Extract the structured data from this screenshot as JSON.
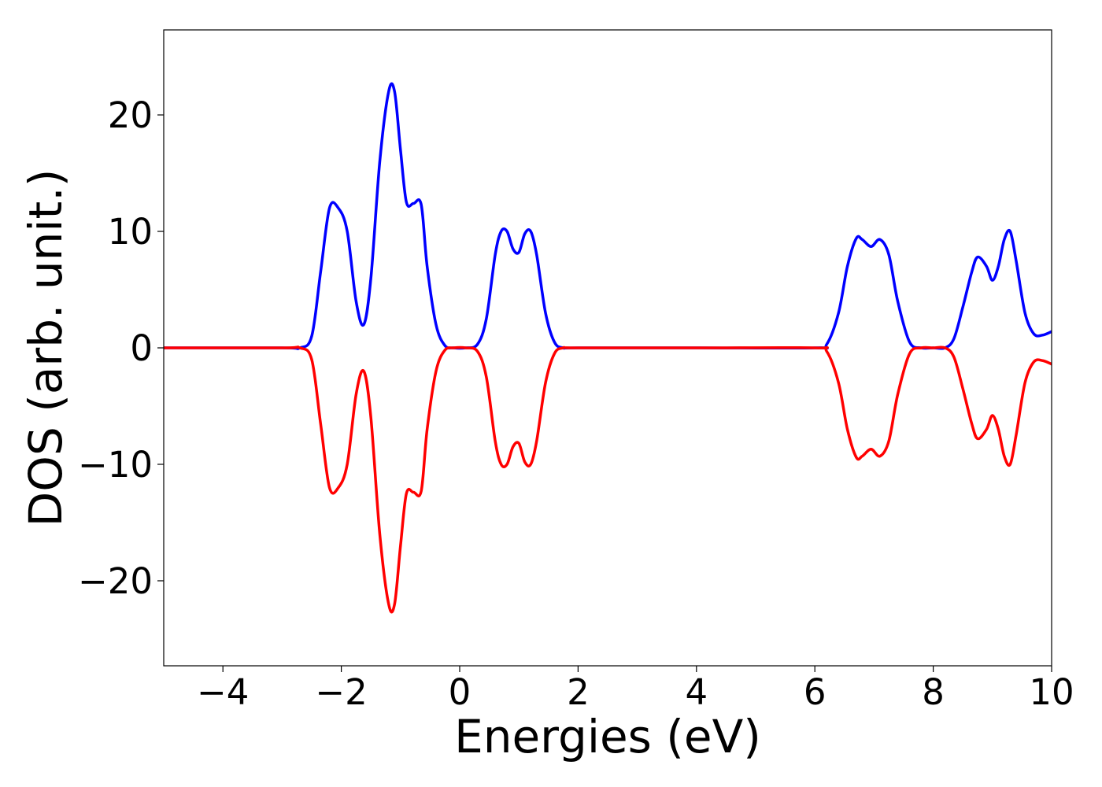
{
  "chart_data": {
    "type": "line",
    "xlabel": "Energies (eV)",
    "ylabel": "DOS (arb. unit.)",
    "xlim": [
      -5,
      10
    ],
    "ylim": [
      -27.3,
      27.3
    ],
    "xticks": [
      -4,
      -2,
      0,
      2,
      4,
      6,
      8,
      10
    ],
    "xtick_labels": [
      "−4",
      "−2",
      "0",
      "2",
      "4",
      "6",
      "8",
      "10"
    ],
    "yticks": [
      20,
      10,
      0,
      -10,
      -20
    ],
    "ytick_labels": [
      "20",
      "10",
      "0",
      "−10",
      "−20"
    ],
    "grid": false,
    "series": [
      {
        "color": "#0000ff",
        "x": [
          -5,
          -3,
          -2.7,
          -2.5,
          -2.35,
          -2.2,
          -2.05,
          -1.9,
          -1.75,
          -1.62,
          -1.5,
          -1.35,
          -1.2,
          -1.1,
          -1.0,
          -0.9,
          -0.78,
          -0.65,
          -0.55,
          -0.4,
          -0.25,
          -0.1,
          0.1,
          0.3,
          0.45,
          0.6,
          0.7,
          0.8,
          0.9,
          1.0,
          1.1,
          1.2,
          1.3,
          1.45,
          1.6,
          1.75,
          2,
          4,
          6,
          6.2,
          6.4,
          6.55,
          6.7,
          6.8,
          6.95,
          7.1,
          7.25,
          7.4,
          7.6,
          7.8,
          8.0,
          8.2,
          8.35,
          8.5,
          8.65,
          8.75,
          8.9,
          9.0,
          9.1,
          9.2,
          9.3,
          9.4,
          9.55,
          9.7,
          9.85,
          10
        ],
        "values": [
          0,
          0,
          0,
          1.0,
          6.5,
          12.0,
          12.0,
          10.0,
          4.0,
          2.0,
          6.0,
          16.0,
          22.0,
          22.0,
          17.0,
          12.5,
          12.4,
          12.3,
          7.0,
          2.0,
          0.2,
          0,
          0,
          0.3,
          2.5,
          8.0,
          10.0,
          10.0,
          8.5,
          8.2,
          9.8,
          10.0,
          8.0,
          3.0,
          0.5,
          0,
          0,
          0,
          0,
          0.3,
          3.0,
          7.0,
          9.4,
          9.3,
          8.7,
          9.3,
          8.0,
          4.0,
          0.5,
          0,
          0,
          0,
          0.8,
          3.5,
          6.5,
          7.8,
          7.0,
          5.8,
          7.0,
          9.3,
          10.0,
          7.5,
          3.0,
          1.2,
          1.1,
          1.4
        ]
      },
      {
        "color": "#ff0000",
        "x": [
          -5,
          -3,
          -2.7,
          -2.5,
          -2.35,
          -2.2,
          -2.05,
          -1.9,
          -1.75,
          -1.62,
          -1.5,
          -1.35,
          -1.2,
          -1.1,
          -1.0,
          -0.9,
          -0.78,
          -0.65,
          -0.55,
          -0.4,
          -0.25,
          -0.1,
          0.1,
          0.3,
          0.45,
          0.6,
          0.7,
          0.8,
          0.9,
          1.0,
          1.1,
          1.2,
          1.3,
          1.45,
          1.6,
          1.75,
          2,
          4,
          6,
          6.2,
          6.4,
          6.55,
          6.7,
          6.8,
          6.95,
          7.1,
          7.25,
          7.4,
          7.6,
          7.8,
          8.0,
          8.2,
          8.35,
          8.5,
          8.65,
          8.75,
          8.9,
          9.0,
          9.1,
          9.2,
          9.3,
          9.4,
          9.55,
          9.7,
          9.85,
          10
        ],
        "values": [
          0,
          0,
          0,
          -1.0,
          -6.5,
          -12.0,
          -12.0,
          -10.0,
          -4.0,
          -2.0,
          -6.0,
          -16.0,
          -22.0,
          -22.0,
          -17.0,
          -12.5,
          -12.4,
          -12.3,
          -7.0,
          -2.0,
          -0.2,
          0,
          0,
          -0.3,
          -2.5,
          -8.0,
          -10.0,
          -10.0,
          -8.5,
          -8.2,
          -9.8,
          -10.0,
          -8.0,
          -3.0,
          -0.5,
          0,
          0,
          0,
          0,
          -0.3,
          -3.0,
          -7.0,
          -9.4,
          -9.3,
          -8.7,
          -9.3,
          -8.0,
          -4.0,
          -0.5,
          0,
          0,
          0,
          -0.8,
          -3.5,
          -6.5,
          -7.8,
          -7.0,
          -5.8,
          -7.0,
          -9.3,
          -10.0,
          -7.5,
          -3.0,
          -1.2,
          -1.1,
          -1.4
        ]
      }
    ]
  }
}
